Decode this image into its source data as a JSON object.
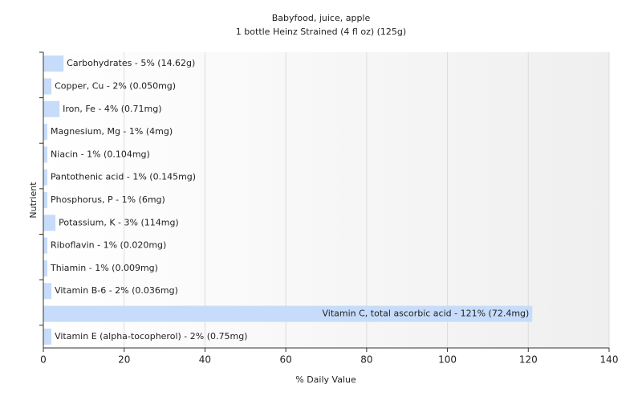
{
  "chart_data": {
    "type": "hbar",
    "title": "Babyfood, juice, apple",
    "subtitle": "1 bottle Heinz Strained (4 fl oz) (125g)",
    "x_label": "% Daily Value",
    "y_label": "Nutrient",
    "values": [
      5,
      2,
      4,
      1,
      1,
      1,
      1,
      3,
      1,
      1,
      2,
      121,
      2
    ],
    "value_labels": [
      "Carbohydrates - 5% (14.62g)",
      "Copper, Cu - 2% (0.050mg)",
      "Iron, Fe - 4% (0.71mg)",
      "Magnesium, Mg - 1% (4mg)",
      "Niacin - 1% (0.104mg)",
      "Pantothenic acid - 1% (0.145mg)",
      "Phosphorus, P - 1% (6mg)",
      "Potassium, K - 3% (114mg)",
      "Riboflavin - 1% (0.020mg)",
      "Thiamin - 1% (0.009mg)",
      "Vitamin B-6 - 2% (0.036mg)",
      "Vitamin C, total ascorbic acid - 121% (72.4mg)",
      "Vitamin E (alpha-tocopherol) - 2% (0.75mg)"
    ],
    "color": "#c6dcfa",
    "xlim": [
      0,
      140
    ],
    "xticks": [
      0,
      20,
      40,
      60,
      80,
      100,
      120,
      140
    ],
    "grid": true
  }
}
